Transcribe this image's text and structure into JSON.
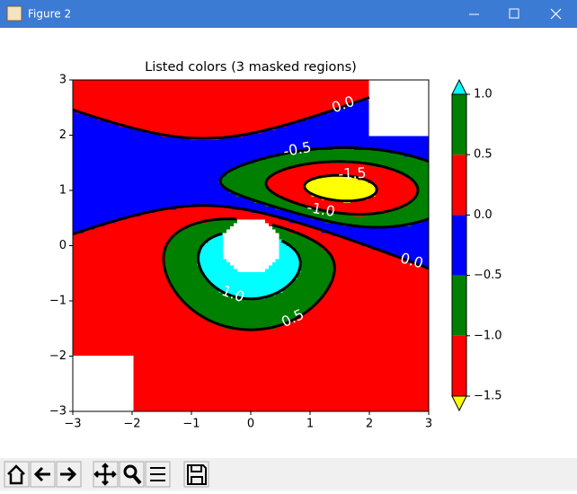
{
  "window_title": "Figure 2",
  "chart_data": {
    "type": "contour",
    "title": "Listed colors (3 masked regions)",
    "xlim": [
      -3,
      3
    ],
    "ylim": [
      -3,
      3
    ],
    "xticks": [
      {
        "value": -3,
        "label": "−3"
      },
      {
        "value": -2,
        "label": "−2"
      },
      {
        "value": -1,
        "label": "−1"
      },
      0,
      1,
      2,
      3
    ],
    "yticks": [
      {
        "value": -3,
        "label": "−3"
      },
      {
        "value": -2,
        "label": "−2"
      },
      {
        "value": -1,
        "label": "−1"
      },
      0,
      1,
      2,
      3
    ],
    "levels": [
      -1.5,
      -1,
      -0.5,
      0,
      0.5,
      1
    ],
    "band_colors": [
      "#ff0000",
      "#008000",
      "#0000ff",
      "#ff0000",
      "#008000"
    ],
    "under_color": "#ffff00",
    "over_color": "#00ffff",
    "colorbar_ticks": [
      {
        "value": -1.5,
        "label": "−1.5"
      },
      {
        "value": -1,
        "label": "−1.0"
      },
      {
        "value": -0.5,
        "label": "−0.5"
      },
      {
        "value": 0,
        "label": "0.0"
      },
      {
        "value": 0.5,
        "label": "0.5"
      },
      {
        "value": 1,
        "label": "1.0"
      }
    ],
    "contour_labels": [
      "0.0",
      "-0.5",
      "-1.5",
      "-1.0",
      "0.0",
      "1.0",
      "0.5"
    ]
  }
}
